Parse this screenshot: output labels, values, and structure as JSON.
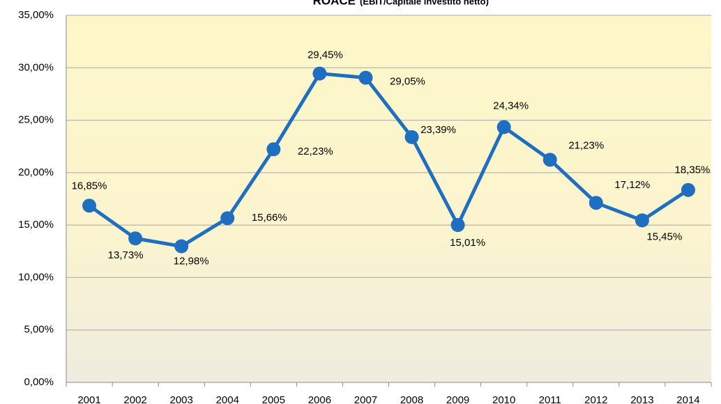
{
  "chart_data": {
    "type": "line",
    "title": "ROACE",
    "subtitle": "(EBIT/Capitale investito netto)",
    "categories": [
      "2001",
      "2002",
      "2003",
      "2004",
      "2005",
      "2006",
      "2007",
      "2008",
      "2009",
      "2010",
      "2011",
      "2012",
      "2013",
      "2014"
    ],
    "values": [
      16.85,
      13.73,
      12.98,
      15.66,
      22.23,
      29.45,
      29.05,
      23.39,
      15.01,
      24.34,
      21.23,
      17.12,
      15.45,
      18.35
    ],
    "value_labels": [
      "16,85%",
      "13,73%",
      "12,98%",
      "15,66%",
      "22,23%",
      "29,45%",
      "29,05%",
      "23,39%",
      "15,01%",
      "24,34%",
      "21,23%",
      "17,12%",
      "15,45%",
      "18,35%"
    ],
    "color": "#1f6fc0",
    "ylim": [
      0,
      35
    ],
    "yticks": [
      {
        "value": 0,
        "label": "0,00%"
      },
      {
        "value": 5,
        "label": "5,00%"
      },
      {
        "value": 10,
        "label": "10,00%"
      },
      {
        "value": 15,
        "label": "15,00%"
      },
      {
        "value": 20,
        "label": "20,00%"
      },
      {
        "value": 25,
        "label": "25,00%"
      },
      {
        "value": 30,
        "label": "30,00%"
      },
      {
        "value": 35,
        "label": "35,00%"
      }
    ],
    "grid": true
  }
}
